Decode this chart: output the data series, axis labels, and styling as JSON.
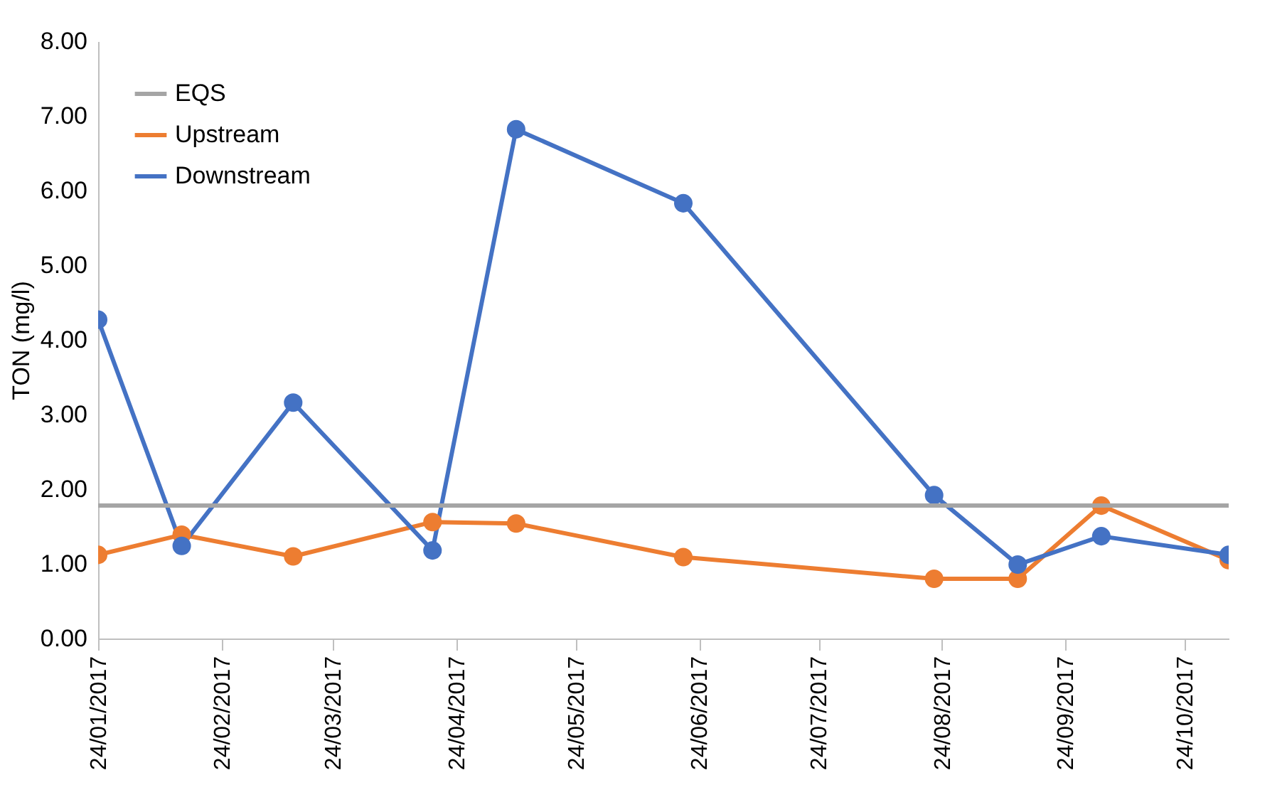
{
  "chart_data": {
    "type": "line",
    "ylabel": "TON (mg/l)",
    "x": [
      "2017-01-24",
      "2017-02-14",
      "2017-03-14",
      "2017-04-18",
      "2017-05-09",
      "2017-06-20",
      "2017-08-22",
      "2017-09-12",
      "2017-10-03",
      "2017-11-04"
    ],
    "series": [
      {
        "name": "Upstream",
        "color": "#ed7d31",
        "values": [
          1.12,
          1.39,
          1.1,
          1.56,
          1.54,
          1.09,
          0.8,
          0.8,
          1.78,
          1.05
        ]
      },
      {
        "name": "Downstream",
        "color": "#4472c4",
        "values": [
          4.27,
          1.24,
          3.16,
          1.18,
          6.82,
          5.83,
          1.92,
          0.99,
          1.37,
          1.12
        ]
      }
    ],
    "ref_lines": [
      {
        "axis": "y",
        "value": 1.78,
        "label": "EQS",
        "color": "#a5a5a5",
        "line_style": "solid"
      }
    ],
    "xlim": [
      "2017-01-24",
      "2017-11-04"
    ],
    "xticks": [
      {
        "value": "2017-01-24",
        "label": "24/01/2017"
      },
      {
        "value": "2017-02-24",
        "label": "24/02/2017"
      },
      {
        "value": "2017-03-24",
        "label": "24/03/2017"
      },
      {
        "value": "2017-04-24",
        "label": "24/04/2017"
      },
      {
        "value": "2017-05-24",
        "label": "24/05/2017"
      },
      {
        "value": "2017-06-24",
        "label": "24/06/2017"
      },
      {
        "value": "2017-07-24",
        "label": "24/07/2017"
      },
      {
        "value": "2017-08-24",
        "label": "24/08/2017"
      },
      {
        "value": "2017-09-24",
        "label": "24/09/2017"
      },
      {
        "value": "2017-10-24",
        "label": "24/10/2017"
      }
    ],
    "ylim": [
      0,
      8
    ],
    "yticks": [
      {
        "value": 0,
        "label": "0.00"
      },
      {
        "value": 1,
        "label": "1.00"
      },
      {
        "value": 2,
        "label": "2.00"
      },
      {
        "value": 3,
        "label": "3.00"
      },
      {
        "value": 4,
        "label": "4.00"
      },
      {
        "value": 5,
        "label": "5.00"
      },
      {
        "value": 6,
        "label": "6.00"
      },
      {
        "value": 7,
        "label": "7.00"
      },
      {
        "value": 8,
        "label": "8.00"
      }
    ],
    "grid": false,
    "legend": "top left",
    "marker": "circle",
    "line_style": "solid"
  }
}
